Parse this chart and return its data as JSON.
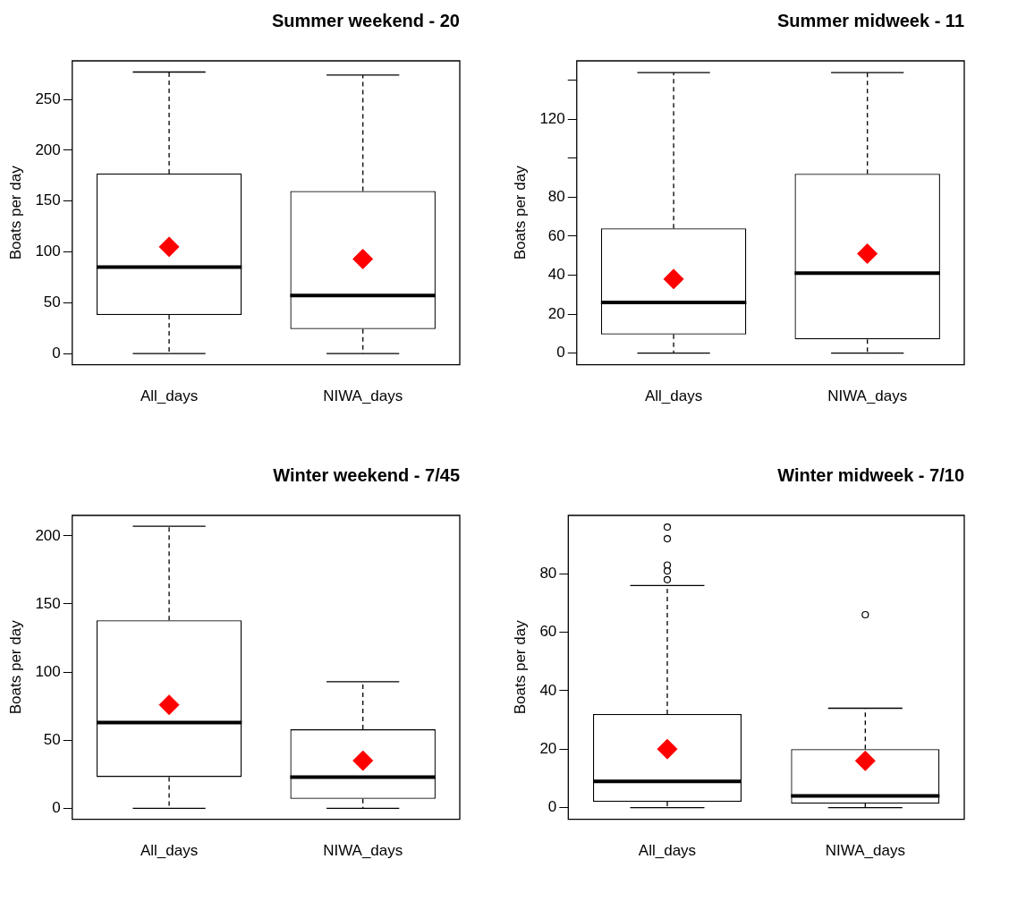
{
  "chart_data": [
    {
      "type": "box",
      "title": "Summer weekend - 20",
      "ylabel": "Boats per day",
      "categories": [
        "All_days",
        "NIWA_days"
      ],
      "ylim": [
        -11,
        288
      ],
      "yticks": [
        0,
        50,
        100,
        150,
        200,
        250
      ],
      "grid": false,
      "legend": false,
      "boxes": [
        {
          "low": 0,
          "q1": 38,
          "median": 85,
          "q3": 177,
          "high": 277,
          "mean": 105
        },
        {
          "low": 0,
          "q1": 24,
          "median": 57,
          "q3": 160,
          "high": 274,
          "mean": 93
        }
      ]
    },
    {
      "type": "box",
      "title": "Summer midweek - 11",
      "ylabel": "Boats per day",
      "categories": [
        "All_days",
        "NIWA_days"
      ],
      "ylim": [
        -6,
        150
      ],
      "yticks": [
        0,
        20,
        40,
        60,
        80,
        {
          "value": 100,
          "label": null
        },
        120,
        {
          "value": 140,
          "label": null
        }
      ],
      "grid": false,
      "legend": false,
      "boxes": [
        {
          "low": 0,
          "q1": 9.5,
          "median": 26,
          "q3": 64,
          "high": 144,
          "mean": 38
        },
        {
          "low": 0,
          "q1": 7,
          "median": 41,
          "q3": 92,
          "high": 144,
          "mean": 51
        }
      ]
    },
    {
      "type": "box",
      "title": "Winter weekend - 7/45",
      "ylabel": "Boats per day",
      "categories": [
        "All_days",
        "NIWA_days"
      ],
      "ylim": [
        -8,
        215
      ],
      "yticks": [
        0,
        50,
        100,
        150,
        200
      ],
      "grid": false,
      "legend": false,
      "boxes": [
        {
          "low": 0,
          "q1": 23,
          "median": 63,
          "q3": 138,
          "high": 207,
          "mean": 76
        },
        {
          "low": 0,
          "q1": 7,
          "median": 23,
          "q3": 58,
          "high": 93,
          "mean": 35
        }
      ]
    },
    {
      "type": "box",
      "title": "Winter midweek - 7/10",
      "ylabel": "Boats per day",
      "categories": [
        "All_days",
        "NIWA_days"
      ],
      "ylim": [
        -4,
        100
      ],
      "yticks": [
        0,
        20,
        40,
        60,
        80
      ],
      "grid": false,
      "legend": false,
      "boxes": [
        {
          "low": 0,
          "q1": 2,
          "median": 9,
          "q3": 32,
          "high": 76,
          "mean": 20,
          "outliers": [
            96,
            92,
            83,
            81,
            78
          ]
        },
        {
          "low": 0,
          "q1": 1.4,
          "median": 4,
          "q3": 20,
          "high": 34,
          "mean": 16,
          "outliers": [
            66
          ]
        }
      ]
    }
  ]
}
